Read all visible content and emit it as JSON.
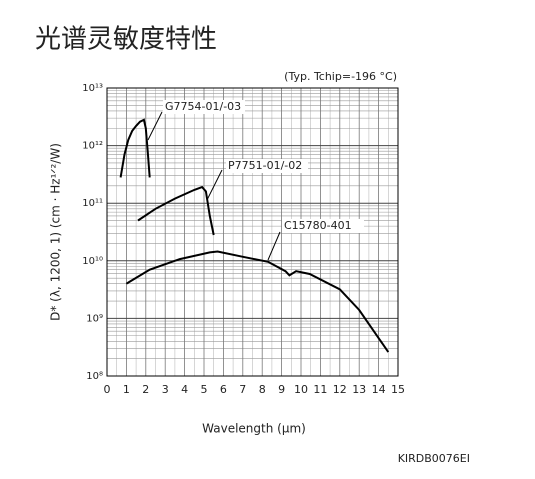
{
  "title": "光谱灵敏度特性",
  "chart_data": {
    "type": "line",
    "note": "(Typ. Tchip=-196 °C)",
    "xlabel": "Wavelength (μm)",
    "ylabel": "D* (λ, 1200, 1) (cm · Hz¹ᐟ²/W)",
    "xlim": [
      0,
      15
    ],
    "xticks": [
      0,
      1,
      2,
      3,
      4,
      5,
      6,
      7,
      8,
      9,
      10,
      11,
      12,
      13,
      14,
      15
    ],
    "ylim": [
      100000000,
      10000000000000
    ],
    "yscale": "log",
    "yticks": [
      {
        "value": 100000000,
        "label": "10⁸"
      },
      {
        "value": 1000000000,
        "label": "10⁹"
      },
      {
        "value": 10000000000,
        "label": "10¹⁰"
      },
      {
        "value": 100000000000,
        "label": "10¹¹"
      },
      {
        "value": 1000000000000,
        "label": "10¹²"
      },
      {
        "value": 10000000000000,
        "label": "10¹³"
      }
    ],
    "grid": true,
    "series": [
      {
        "name": "G7754-01/-03",
        "color": "#000000",
        "x": [
          0.7,
          0.9,
          1.1,
          1.3,
          1.5,
          1.7,
          1.9,
          2.0,
          2.1,
          2.2
        ],
        "values": [
          280000000000,
          700000000000,
          1260000000000,
          1800000000000,
          2200000000000,
          2600000000000,
          2800000000000,
          2000000000000,
          800000000000,
          280000000000
        ]
      },
      {
        "name": "P7751-01/-02",
        "color": "#000000",
        "x": [
          1.6,
          2.5,
          3.5,
          4.5,
          4.9,
          5.1,
          5.3,
          5.5
        ],
        "values": [
          50000000000,
          80000000000,
          120000000000,
          170000000000,
          190000000000,
          160000000000,
          60000000000,
          28000000000
        ]
      },
      {
        "name": "C15780-401",
        "color": "#000000",
        "x": [
          1.0,
          2.2,
          3.75,
          5.3,
          5.7,
          6.85,
          8.3,
          9.2,
          9.4,
          9.75,
          10.45,
          12.0,
          13.0,
          14.5
        ],
        "values": [
          4000000000,
          7000000000,
          10700000000,
          14000000000,
          14500000000,
          12000000000,
          9600000000,
          6600000000,
          5600000000,
          6600000000,
          5900000000,
          3200000000,
          1400000000,
          260000000
        ]
      }
    ]
  },
  "footer": "KIRDB0076EI"
}
